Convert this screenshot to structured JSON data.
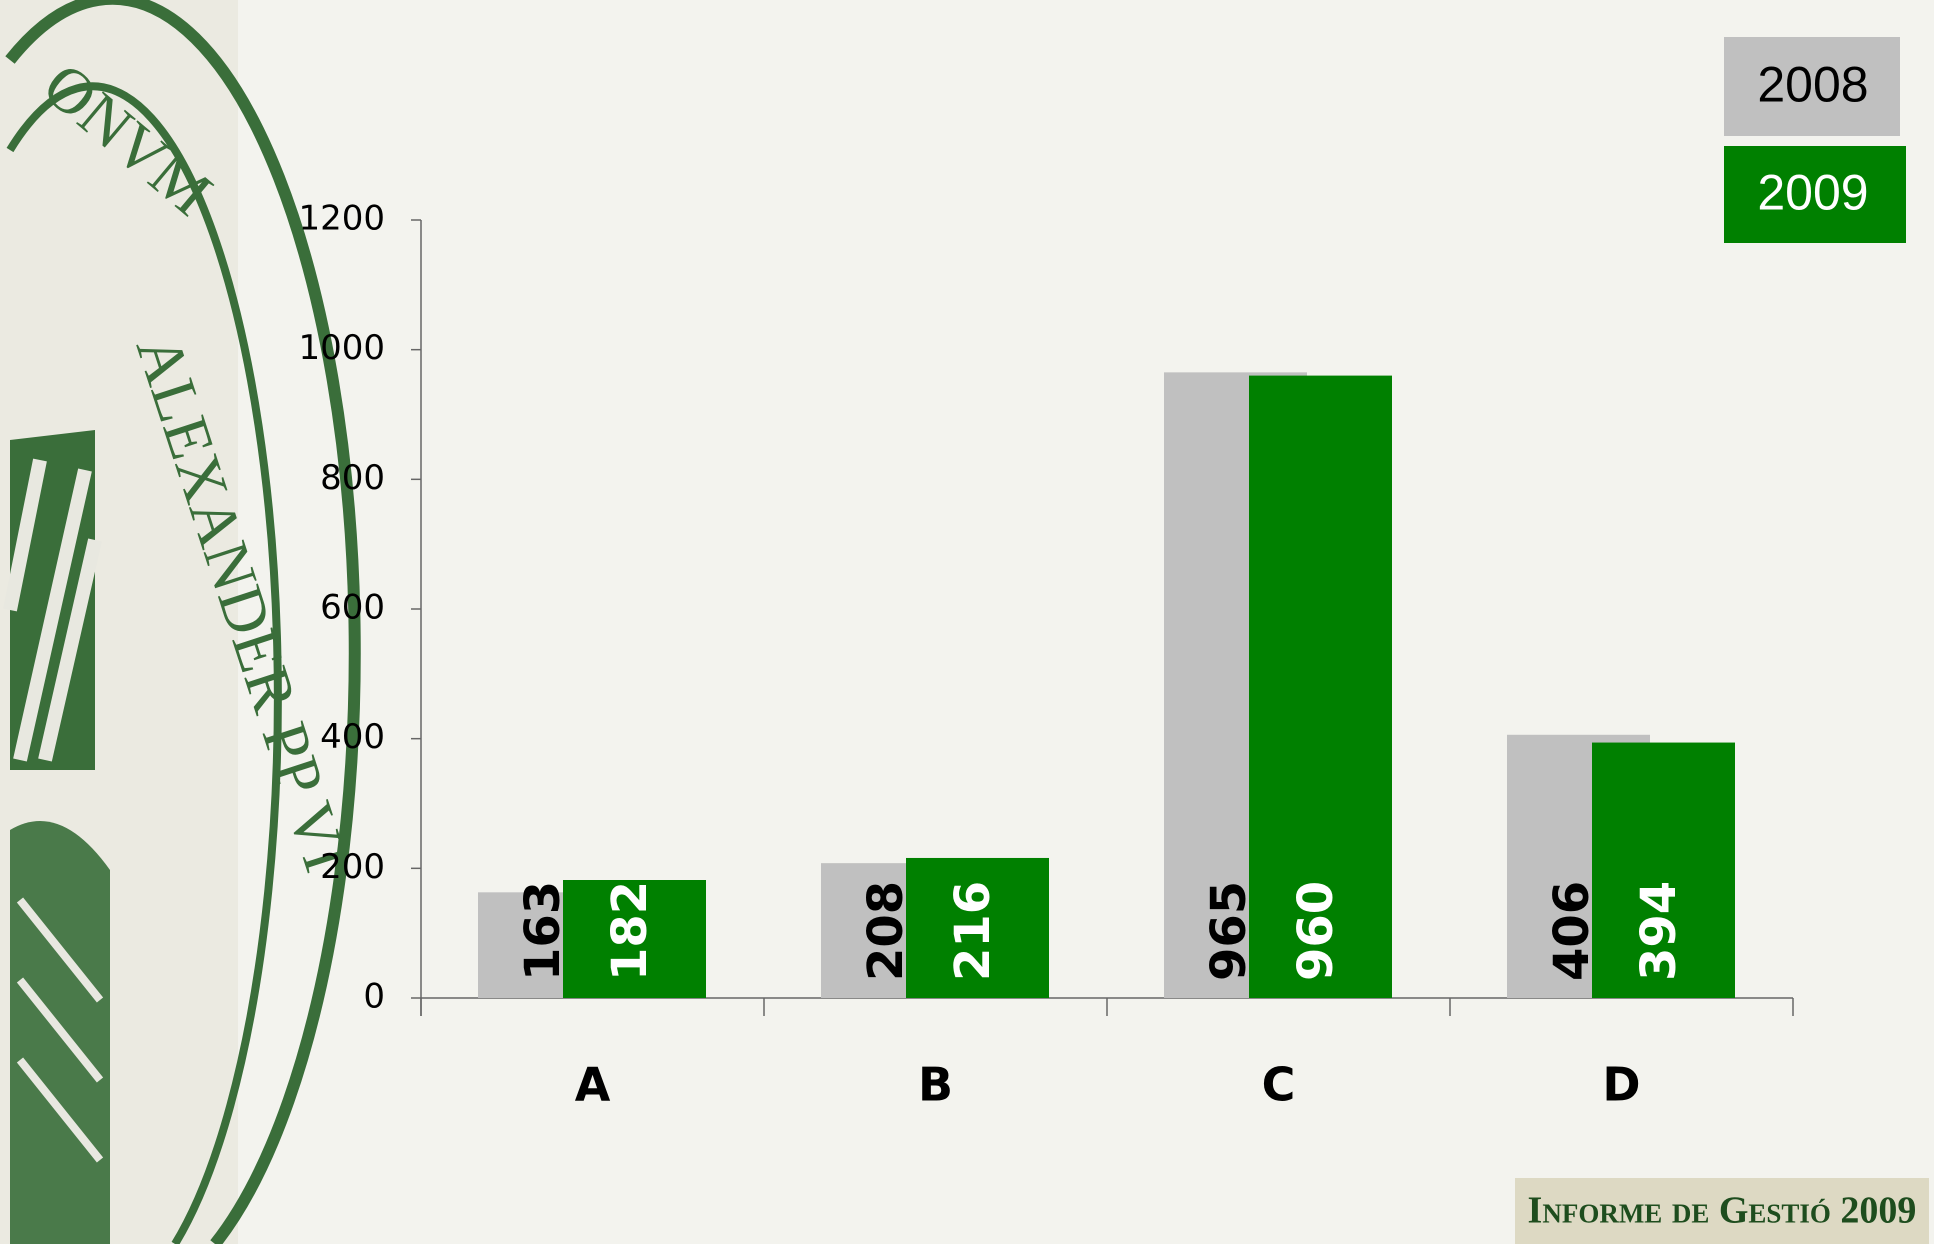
{
  "seal": {
    "texts": [
      "ONVM",
      "ALEXANDER PP VI"
    ]
  },
  "footer": "Informe de Gestió 2009",
  "chart_data": {
    "type": "bar",
    "categories": [
      "A",
      "B",
      "C",
      "D"
    ],
    "series": [
      {
        "name": "2008",
        "color": "#c0c0c0",
        "values": [
          163,
          208,
          965,
          406
        ]
      },
      {
        "name": "2009",
        "color": "#008000",
        "values": [
          182,
          216,
          960,
          394
        ]
      }
    ],
    "ylim": [
      0,
      1200
    ],
    "yticks": [
      0,
      200,
      400,
      600,
      800,
      1000,
      1200
    ],
    "grid": false,
    "legend": "top-right"
  }
}
